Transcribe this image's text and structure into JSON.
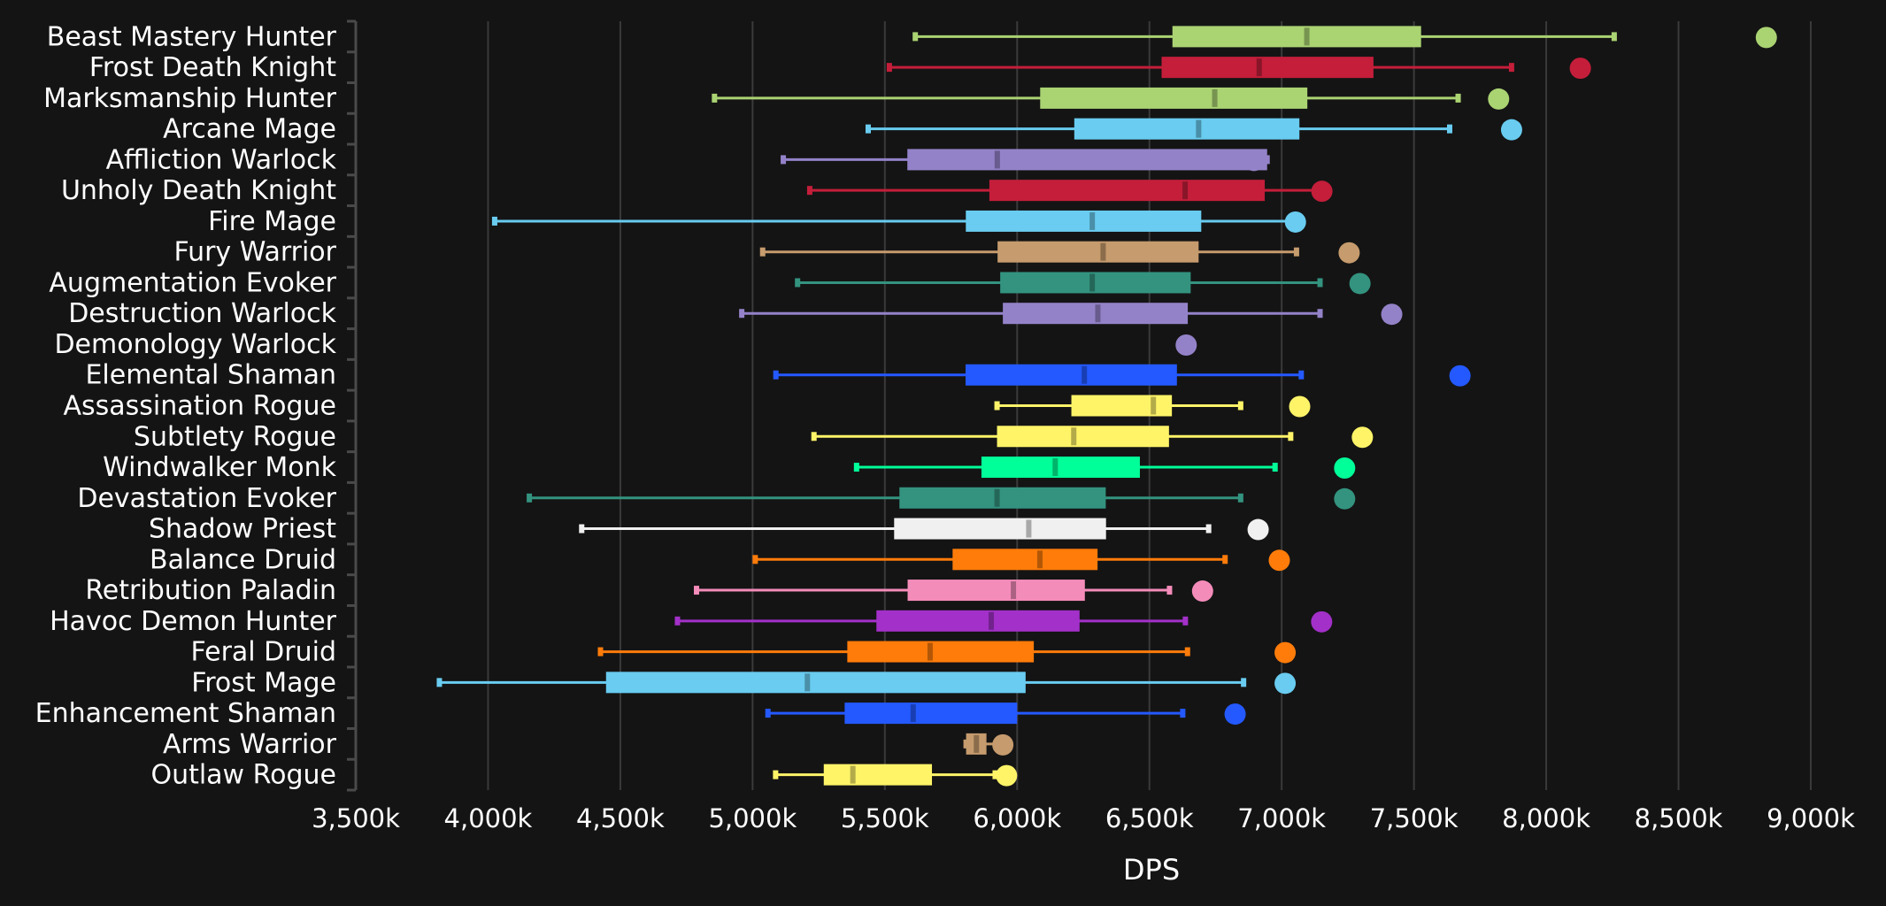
{
  "chart_data": {
    "type": "boxplot",
    "title": "",
    "xlabel": "DPS",
    "ylabel": "",
    "xlim": [
      3500,
      9000
    ],
    "x_unit_suffix": "k",
    "x_ticks": [
      3500,
      4000,
      4500,
      5000,
      5500,
      6000,
      6500,
      7000,
      7500,
      8000,
      8500,
      9000
    ],
    "x_tick_labels": [
      "3,500k",
      "4,000k",
      "4,500k",
      "5,000k",
      "5,500k",
      "6,000k",
      "6,500k",
      "7,000k",
      "7,500k",
      "8,000k",
      "8,500k",
      "9,000k"
    ],
    "grid": "vertical",
    "legend": "none",
    "note": "Each row: min whisker, Q1, median, Q3, max whisker, and a highlighted point (circle). Values in thousands of DPS, estimated from gridlines.",
    "series": [
      {
        "name": "Beast Mastery Hunter",
        "color": "#aad372",
        "min": 5615,
        "q1": 6587,
        "median": 7095,
        "q3": 7527,
        "max": 8257,
        "point": 8832
      },
      {
        "name": "Frost Death Knight",
        "color": "#c41e3a",
        "min": 5517,
        "q1": 6546,
        "median": 6915,
        "q3": 7347,
        "max": 7869,
        "point": 8129
      },
      {
        "name": "Marksmanship Hunter",
        "color": "#aad372",
        "min": 4856,
        "q1": 6087,
        "median": 6747,
        "q3": 7097,
        "max": 7667,
        "point": 7820
      },
      {
        "name": "Arcane Mage",
        "color": "#69ccf0",
        "min": 5437,
        "q1": 6216,
        "median": 6686,
        "q3": 7067,
        "max": 7635,
        "point": 7869
      },
      {
        "name": "Affliction Warlock",
        "color": "#9482c9",
        "min": 5116,
        "q1": 5585,
        "median": 5925,
        "q3": 6945,
        "max": 6945,
        "point": 6895
      },
      {
        "name": "Unholy Death Knight",
        "color": "#c41e3a",
        "min": 5216,
        "q1": 5895,
        "median": 6635,
        "q3": 6936,
        "max": 7148,
        "point": 7152
      },
      {
        "name": "Fire Mage",
        "color": "#69ccf0",
        "min": 4025,
        "q1": 5806,
        "median": 6284,
        "q3": 6696,
        "max": 7052,
        "point": 7052
      },
      {
        "name": "Fury Warrior",
        "color": "#c69b6d",
        "min": 5038,
        "q1": 5926,
        "median": 6325,
        "q3": 6686,
        "max": 7056,
        "point": 7255
      },
      {
        "name": "Augmentation Evoker",
        "color": "#33937f",
        "min": 5170,
        "q1": 5936,
        "median": 6284,
        "q3": 6656,
        "max": 7145,
        "point": 7296
      },
      {
        "name": "Destruction Warlock",
        "color": "#9482c9",
        "min": 4959,
        "q1": 5946,
        "median": 6305,
        "q3": 6645,
        "max": 7145,
        "point": 7416
      },
      {
        "name": "Demonology Warlock",
        "color": "#9482c9",
        "min": null,
        "q1": null,
        "median": null,
        "q3": null,
        "max": null,
        "point": 6639
      },
      {
        "name": "Elemental Shaman",
        "color": "#2459ff",
        "min": 5088,
        "q1": 5805,
        "median": 6254,
        "q3": 6604,
        "max": 7074,
        "point": 7674
      },
      {
        "name": "Assassination Rogue",
        "color": "#fff468",
        "min": 5924,
        "q1": 6205,
        "median": 6515,
        "q3": 6585,
        "max": 6845,
        "point": 7068
      },
      {
        "name": "Subtlety Rogue",
        "color": "#fff468",
        "min": 5232,
        "q1": 5924,
        "median": 6214,
        "q3": 6574,
        "max": 7034,
        "point": 7305
      },
      {
        "name": "Windwalker Monk",
        "color": "#00ff98",
        "min": 5393,
        "q1": 5865,
        "median": 6144,
        "q3": 6464,
        "max": 6975,
        "point": 7238
      },
      {
        "name": "Devastation Evoker",
        "color": "#33937f",
        "min": 4156,
        "q1": 5555,
        "median": 5924,
        "q3": 6335,
        "max": 6845,
        "point": 7238
      },
      {
        "name": "Shadow Priest",
        "color": "#f0f0f0",
        "min": 4354,
        "q1": 5535,
        "median": 6044,
        "q3": 6336,
        "max": 6724,
        "point": 6911
      },
      {
        "name": "Balance Druid",
        "color": "#ff7c0a",
        "min": 5010,
        "q1": 5756,
        "median": 6086,
        "q3": 6304,
        "max": 6786,
        "point": 6991
      },
      {
        "name": "Retribution Paladin",
        "color": "#f48cba",
        "min": 4788,
        "q1": 5586,
        "median": 5986,
        "q3": 6256,
        "max": 6576,
        "point": 6701
      },
      {
        "name": "Havoc Demon Hunter",
        "color": "#a330c9",
        "min": 4716,
        "q1": 5468,
        "median": 5902,
        "q3": 6236,
        "max": 6636,
        "point": 7151
      },
      {
        "name": "Feral Druid",
        "color": "#ff7c0a",
        "min": 4425,
        "q1": 5358,
        "median": 5671,
        "q3": 6063,
        "max": 6644,
        "point": 7013
      },
      {
        "name": "Frost Mage",
        "color": "#69ccf0",
        "min": 3816,
        "q1": 4446,
        "median": 5207,
        "q3": 6032,
        "max": 6856,
        "point": 7013
      },
      {
        "name": "Enhancement Shaman",
        "color": "#2459ff",
        "min": 5058,
        "q1": 5348,
        "median": 5607,
        "q3": 6000,
        "max": 6626,
        "point": 6824
      },
      {
        "name": "Arms Warrior",
        "color": "#c69b6d",
        "min": 5807,
        "q1": 5807,
        "median": 5846,
        "q3": 5884,
        "max": 5930,
        "point": 5946
      },
      {
        "name": "Outlaw Rogue",
        "color": "#fff468",
        "min": 5087,
        "q1": 5269,
        "median": 5379,
        "q3": 5678,
        "max": 5917,
        "point": 5960
      }
    ]
  },
  "colors": {
    "background": "#141414",
    "grid": "#3a3a3a",
    "axis": "#4a4a4a",
    "text": "#ffffff"
  }
}
